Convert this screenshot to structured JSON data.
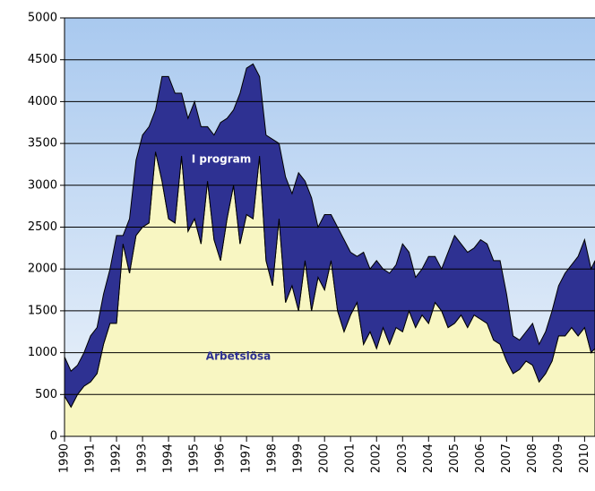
{
  "chart_data": {
    "type": "stacked_area",
    "x": [
      1990,
      1990.25,
      1990.5,
      1990.75,
      1991,
      1991.25,
      1991.5,
      1991.75,
      1992,
      1992.25,
      1992.5,
      1992.75,
      1993,
      1993.25,
      1993.5,
      1993.75,
      1994,
      1994.25,
      1994.5,
      1994.75,
      1995,
      1995.25,
      1995.5,
      1995.75,
      1996,
      1996.25,
      1996.5,
      1996.75,
      1997,
      1997.25,
      1997.5,
      1997.75,
      1998,
      1998.25,
      1998.5,
      1998.75,
      1999,
      1999.25,
      1999.5,
      1999.75,
      2000,
      2000.25,
      2000.5,
      2000.75,
      2001,
      2001.25,
      2001.5,
      2001.75,
      2002,
      2002.25,
      2002.5,
      2002.75,
      2003,
      2003.25,
      2003.5,
      2003.75,
      2004,
      2004.25,
      2004.5,
      2004.75,
      2005,
      2005.25,
      2005.5,
      2005.75,
      2006,
      2006.25,
      2006.5,
      2006.75,
      2007,
      2007.25,
      2007.5,
      2007.75,
      2008,
      2008.25,
      2008.5,
      2008.75,
      2009,
      2009.25,
      2009.5,
      2009.75,
      2010,
      2010.25,
      2010.4
    ],
    "series": [
      {
        "name": "Arbetslösa",
        "color": "#f8f6c2",
        "values": [
          480,
          350,
          500,
          600,
          650,
          750,
          1100,
          1350,
          1350,
          2300,
          1950,
          2400,
          2500,
          2550,
          3400,
          3050,
          2600,
          2550,
          3350,
          2450,
          2600,
          2300,
          3050,
          2350,
          2100,
          2600,
          3000,
          2300,
          2650,
          2600,
          3350,
          2100,
          1800,
          2600,
          1600,
          1800,
          1500,
          2100,
          1500,
          1900,
          1750,
          2100,
          1500,
          1250,
          1450,
          1600,
          1100,
          1250,
          1050,
          1300,
          1100,
          1300,
          1250,
          1500,
          1300,
          1450,
          1350,
          1600,
          1500,
          1300,
          1350,
          1450,
          1300,
          1450,
          1400,
          1350,
          1150,
          1100,
          900,
          750,
          800,
          900,
          850,
          650,
          750,
          900,
          1200,
          1200,
          1300,
          1200,
          1300,
          1000,
          1050
        ]
      },
      {
        "name": "I program",
        "color": "#2e3192",
        "values": [
          470,
          430,
          350,
          400,
          550,
          550,
          600,
          650,
          1050,
          100,
          650,
          900,
          1100,
          1150,
          500,
          1250,
          1700,
          1550,
          750,
          1350,
          1400,
          1400,
          650,
          1250,
          1650,
          1200,
          900,
          1800,
          1750,
          1850,
          950,
          1500,
          1750,
          900,
          1500,
          1100,
          1650,
          950,
          1350,
          600,
          900,
          550,
          1000,
          1100,
          750,
          550,
          1100,
          750,
          1050,
          700,
          850,
          750,
          1050,
          700,
          600,
          550,
          800,
          550,
          500,
          900,
          1050,
          850,
          900,
          800,
          950,
          950,
          950,
          1000,
          800,
          450,
          350,
          350,
          500,
          450,
          500,
          600,
          600,
          750,
          750,
          950,
          1050,
          1000,
          1050
        ]
      }
    ],
    "xlim": [
      1990,
      2010.4
    ],
    "xticks": [
      1990,
      1991,
      1992,
      1993,
      1994,
      1995,
      1996,
      1997,
      1998,
      1999,
      2000,
      2001,
      2002,
      2003,
      2004,
      2005,
      2006,
      2007,
      2008,
      2009,
      2010
    ],
    "ylim": [
      0,
      5000
    ],
    "yticks": [
      0,
      500,
      1000,
      1500,
      2000,
      2500,
      3000,
      3500,
      4000,
      4500,
      5000
    ],
    "grid": true
  }
}
